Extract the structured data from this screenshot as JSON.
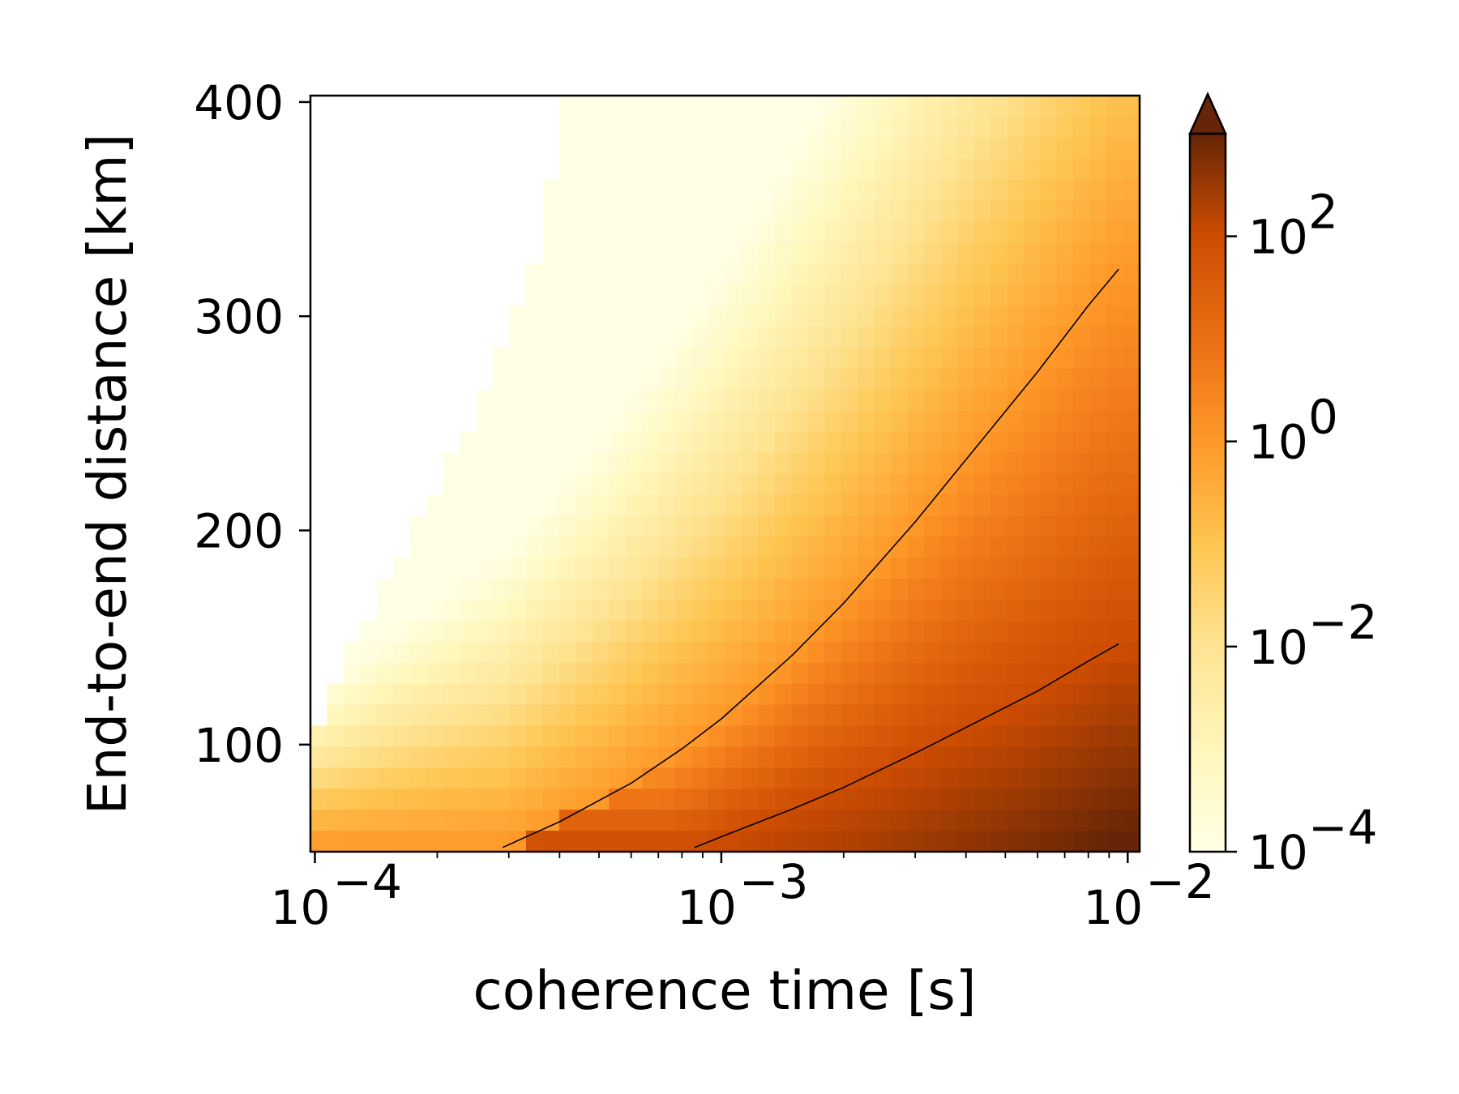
{
  "chart_data": {
    "type": "heatmap",
    "title": "",
    "xlabel": "coherence time [s]",
    "ylabel": "End-to-end distance [km]",
    "x_scale": "log",
    "xlim": [
      9.75e-05,
      0.0107
    ],
    "ylim": [
      50,
      403
    ],
    "x_ticks": [
      {
        "value": 0.0001,
        "base": "10",
        "exp": "−4"
      },
      {
        "value": 0.001,
        "base": "10",
        "exp": "−3"
      },
      {
        "value": 0.01,
        "base": "10",
        "exp": "−2"
      }
    ],
    "y_ticks": [
      {
        "value": 100,
        "label": "100"
      },
      {
        "value": 200,
        "label": "200"
      },
      {
        "value": 300,
        "label": "300"
      },
      {
        "value": 400,
        "label": "400"
      }
    ],
    "grid": false,
    "colormap": "YlOrBr",
    "colorbar": {
      "scale": "log",
      "range": [
        0.0001,
        1000
      ],
      "extend": "max",
      "ticks": [
        {
          "value": 0.0001,
          "base": "10",
          "exp": "−4"
        },
        {
          "value": 0.01,
          "base": "10",
          "exp": "−2"
        },
        {
          "value": 1,
          "base": "10",
          "exp": "0"
        },
        {
          "value": 100,
          "base": "10",
          "exp": "2"
        }
      ]
    },
    "blank_region_boundary": {
      "description_note": "cells left of boundary are undefined (white)",
      "x": [
        9.75e-05,
        0.000105,
        0.000115,
        0.000125,
        0.000135,
        0.000148,
        0.000162,
        0.000178,
        0.000195,
        0.000215,
        0.000236,
        0.000258,
        0.000283,
        0.00031,
        0.00034,
        0.00037,
        0.0004
      ],
      "y": [
        100,
        118,
        133,
        148,
        162,
        176,
        190,
        204,
        218,
        232,
        248,
        263,
        280,
        298,
        315,
        340,
        403
      ]
    },
    "contours": [
      {
        "x": [
          0.00029,
          0.0004,
          0.0006,
          0.0008,
          0.001,
          0.0015,
          0.002,
          0.003,
          0.004,
          0.006,
          0.008,
          0.0095
        ],
        "y": [
          52,
          64,
          82,
          98,
          112,
          142,
          166,
          204,
          233,
          274,
          305,
          322
        ]
      },
      {
        "x": [
          0.00086,
          0.001,
          0.0015,
          0.002,
          0.003,
          0.004,
          0.006,
          0.008,
          0.0095
        ],
        "y": [
          52,
          57,
          70,
          80,
          96,
          108,
          125,
          139,
          147
        ]
      }
    ]
  }
}
